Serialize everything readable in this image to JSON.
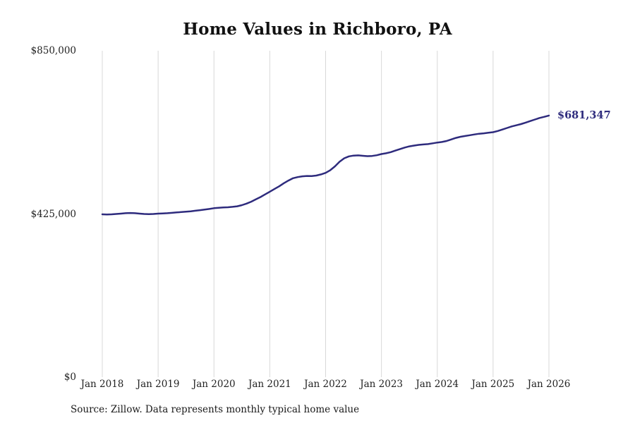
{
  "chart_data": {
    "type": "line",
    "title": "Home Values in Richboro, PA",
    "source": "Source: Zillow. Data represents monthly typical home value",
    "end_label": "$681,347",
    "final_value": 681347,
    "line_color": "#2e2b7d",
    "label_color": "#2e2b7d",
    "grid_color": "#d8d8d8",
    "legend": "none",
    "grid": "vertical-only",
    "x_tick_labels": [
      "Jan 2018",
      "Jan 2019",
      "Jan 2020",
      "Jan 2021",
      "Jan 2022",
      "Jan 2023",
      "Jan 2024",
      "Jan 2025",
      "Jan 2026"
    ],
    "y_tick_labels": [
      "$0",
      "$425,000",
      "$850,000"
    ],
    "y_tick_values": [
      0,
      425000,
      850000
    ],
    "ylim": [
      0,
      850000
    ],
    "x_range": "monthly from Jan 2018 to Jan 2026",
    "values": [
      424000,
      423500,
      424000,
      425000,
      426000,
      427000,
      427500,
      427000,
      426000,
      425000,
      424500,
      425000,
      426000,
      426500,
      427000,
      428000,
      429000,
      430000,
      431000,
      432000,
      433500,
      435000,
      436500,
      438000,
      440000,
      441000,
      442000,
      442500,
      443500,
      445000,
      448000,
      452000,
      457000,
      463000,
      469000,
      476000,
      483000,
      490000,
      497000,
      505000,
      512000,
      518000,
      521000,
      523000,
      524000,
      523500,
      525000,
      528000,
      532000,
      539000,
      549000,
      561000,
      570000,
      575000,
      577000,
      577500,
      576500,
      575500,
      576000,
      578000,
      581000,
      583000,
      586000,
      590000,
      594000,
      598000,
      601000,
      603000,
      605000,
      606000,
      607000,
      609000,
      611000,
      612500,
      615000,
      619000,
      623000,
      626000,
      628000,
      630000,
      632000,
      634000,
      635000,
      636500,
      638000,
      641000,
      645000,
      649000,
      653000,
      656000,
      659000,
      663000,
      667000,
      671000,
      675000,
      678000,
      681347
    ]
  }
}
